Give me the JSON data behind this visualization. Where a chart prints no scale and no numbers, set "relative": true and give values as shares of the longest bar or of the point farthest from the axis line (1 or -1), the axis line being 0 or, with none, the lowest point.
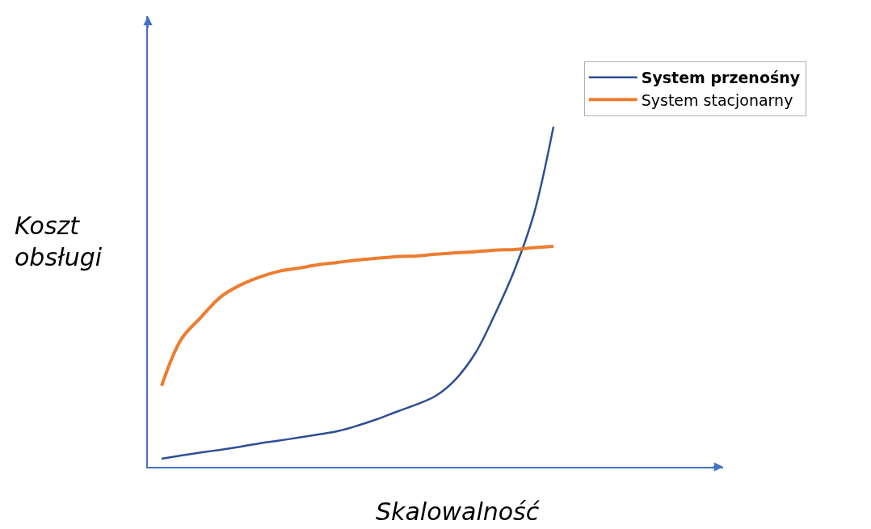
{
  "chart_data": {
    "type": "line",
    "relative": true,
    "xlabel": "Skalowalność",
    "ylabel": "Koszt obsługi",
    "categories": [
      null,
      null,
      null,
      null,
      null,
      null,
      null,
      null,
      null,
      null,
      null,
      null,
      null,
      null,
      null,
      null,
      null,
      null,
      null,
      null,
      null
    ],
    "series": [
      {
        "name": "System przenośny",
        "color": "#2e4e94",
        "values": [
          0.024,
          0.033,
          0.042,
          0.05,
          0.059,
          0.069,
          0.077,
          0.086,
          0.095,
          0.105,
          0.121,
          0.14,
          0.162,
          0.183,
          0.209,
          0.257,
          0.333,
          0.447,
          0.577,
          0.743,
          1
        ]
      },
      {
        "name": "System stacjonarny",
        "color": "#ed7d31",
        "values": [
          0.238,
          0.375,
          0.439,
          0.499,
          0.534,
          0.558,
          0.575,
          0.584,
          0.594,
          0.601,
          0.608,
          0.613,
          0.618,
          0.62,
          0.625,
          0.629,
          0.632,
          0.637,
          0.639,
          0.644,
          0.648
        ]
      }
    ],
    "legend": "top right",
    "marker": "none",
    "line_style": "solid"
  }
}
